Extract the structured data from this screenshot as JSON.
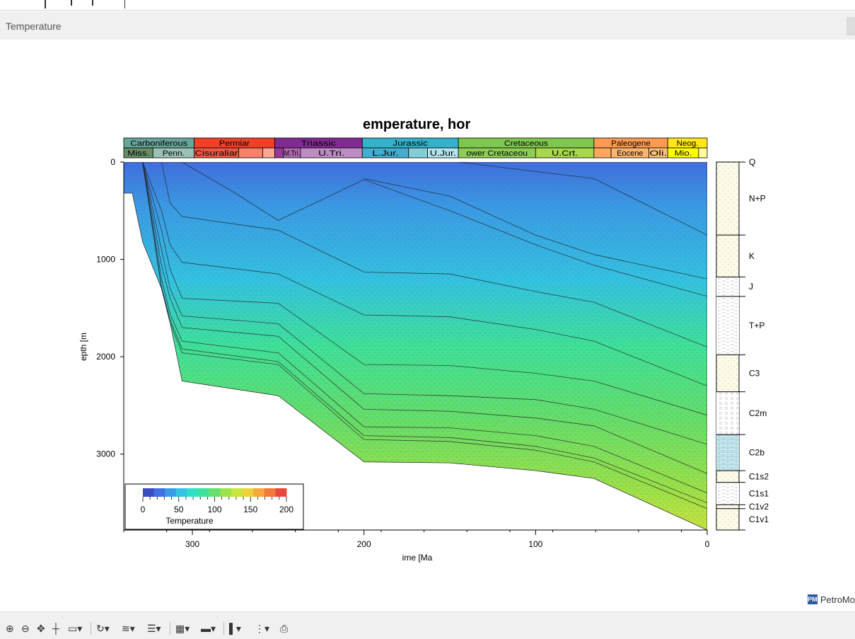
{
  "window": {
    "title": "Temperature",
    "logo_badge": "PM",
    "logo_text": "PetroMo"
  },
  "chart_data": {
    "type": "area",
    "title": "emperature, hor",
    "xlabel": "ime [Ma",
    "ylabel": "epth [m",
    "xlim": [
      340,
      0
    ],
    "ylim": [
      0,
      3780
    ],
    "x_ticks": [
      "300",
      "200",
      "100",
      "0"
    ],
    "y_ticks": [
      "0",
      "1000",
      "2000",
      "3000"
    ],
    "periods_top": [
      {
        "label": "Carboniferous",
        "from": 340,
        "to": 299,
        "color": "#67a599"
      },
      {
        "label": "Permiar",
        "from": 299,
        "to": 252,
        "color": "#f04028"
      },
      {
        "label": "Triassic",
        "from": 252,
        "to": 201,
        "color": "#812b92"
      },
      {
        "label": "Jurassic",
        "from": 201,
        "to": 145,
        "color": "#34b2c9"
      },
      {
        "label": "Cretaceous",
        "from": 145,
        "to": 66,
        "color": "#7fc64e"
      },
      {
        "label": "Paleogene",
        "from": 66,
        "to": 23,
        "color": "#fd9a52"
      },
      {
        "label": "Neog.",
        "from": 23,
        "to": 0,
        "color": "#ffe619"
      }
    ],
    "periods_bottom": [
      {
        "label": "Miss.",
        "from": 340,
        "to": 323,
        "color": "#678f66"
      },
      {
        "label": "Penn.",
        "from": 323,
        "to": 299,
        "color": "#99c2b5"
      },
      {
        "label": "Cisuraliar",
        "from": 299,
        "to": 273,
        "color": "#ef5845"
      },
      {
        "label": "",
        "from": 273,
        "to": 259,
        "color": "#fb8069"
      },
      {
        "label": "",
        "from": 259,
        "to": 252,
        "color": "#fba794"
      },
      {
        "label": "",
        "from": 252,
        "to": 247,
        "color": "#983999"
      },
      {
        "label": "M.Tri.",
        "from": 247,
        "to": 237,
        "color": "#b168b1"
      },
      {
        "label": "U.Tri.",
        "from": 237,
        "to": 201,
        "color": "#bd8cc3"
      },
      {
        "label": "L.Jur.",
        "from": 201,
        "to": 174,
        "color": "#42aed0"
      },
      {
        "label": "",
        "from": 174,
        "to": 163,
        "color": "#80cfd8"
      },
      {
        "label": "U.Jur.",
        "from": 163,
        "to": 145,
        "color": "#b3e3ee"
      },
      {
        "label": "ower Cretaceou",
        "from": 145,
        "to": 100,
        "color": "#8ccd57"
      },
      {
        "label": "U.Crt.",
        "from": 100,
        "to": 66,
        "color": "#a6d84a"
      },
      {
        "label": "",
        "from": 66,
        "to": 56,
        "color": "#fda75f"
      },
      {
        "label": "Eocene",
        "from": 56,
        "to": 34,
        "color": "#fdb46c"
      },
      {
        "label": "Oli.",
        "from": 34,
        "to": 23,
        "color": "#fdc07a"
      },
      {
        "label": "Mio.",
        "from": 23,
        "to": 5,
        "color": "#ffff00"
      },
      {
        "label": "",
        "from": 5,
        "to": 0,
        "color": "#ffff99"
      }
    ],
    "legend": {
      "title": "Temperature",
      "ticks": [
        "0",
        "50",
        "100",
        "150",
        "200"
      ],
      "range": [
        0,
        200
      ],
      "colors": [
        "#3b4cc0",
        "#3f6fe0",
        "#3a9be8",
        "#33c4e4",
        "#2fe0c8",
        "#3ee39a",
        "#66e06a",
        "#9ae34a",
        "#c8e63e",
        "#eed23a",
        "#f7a83a",
        "#f47a3c",
        "#e8473c"
      ]
    },
    "layer_boundaries": [
      {
        "name": "base",
        "x": [
          335,
          329,
          318,
          313,
          306,
          250,
          200,
          150,
          100,
          66,
          0
        ],
        "y": [
          320,
          820,
          1300,
          1650,
          2250,
          2400,
          3080,
          3090,
          3170,
          3250,
          3780
        ]
      },
      {
        "name": "C1v1",
        "x": [
          329,
          318,
          313,
          306,
          250,
          200,
          150,
          100,
          66,
          0
        ],
        "y": [
          0,
          1300,
          1650,
          1960,
          2080,
          2850,
          2870,
          2960,
          3080,
          3560
        ]
      },
      {
        "name": "C1v2",
        "x": [
          329,
          318,
          313,
          306,
          250,
          200,
          150,
          100,
          66,
          0
        ],
        "y": [
          0,
          1280,
          1620,
          1920,
          2050,
          2810,
          2830,
          2920,
          3040,
          3500
        ]
      },
      {
        "name": "C1s1",
        "x": [
          329,
          318,
          313,
          306,
          250,
          200,
          150,
          100,
          66,
          0
        ],
        "y": [
          0,
          1200,
          1560,
          1840,
          1960,
          2720,
          2730,
          2810,
          2920,
          3400
        ]
      },
      {
        "name": "C1s2",
        "x": [
          329,
          318,
          313,
          306,
          250,
          200,
          150,
          100,
          66,
          0
        ],
        "y": [
          0,
          1060,
          1400,
          1700,
          1790,
          2540,
          2560,
          2630,
          2710,
          3200
        ]
      },
      {
        "name": "C2b",
        "x": [
          329,
          318,
          313,
          306,
          250,
          200,
          150,
          100,
          66,
          0
        ],
        "y": [
          0,
          900,
          1300,
          1580,
          1660,
          2380,
          2400,
          2440,
          2540,
          2900
        ]
      },
      {
        "name": "C2m",
        "x": [
          329,
          318,
          313,
          306,
          250,
          200,
          150,
          100,
          66,
          0
        ],
        "y": [
          0,
          700,
          1100,
          1400,
          1450,
          2080,
          2090,
          2170,
          2250,
          2600
        ]
      },
      {
        "name": "C3",
        "x": [
          329,
          318,
          313,
          306,
          250,
          200,
          150,
          100,
          66,
          0
        ],
        "y": [
          0,
          500,
          850,
          1030,
          1150,
          1570,
          1590,
          1720,
          1840,
          2300
        ]
      },
      {
        "name": "T+P",
        "x": [
          318,
          313,
          306,
          250,
          200,
          150,
          100,
          66,
          0
        ],
        "y": [
          0,
          420,
          560,
          700,
          1130,
          1150,
          1330,
          1440,
          1900
        ]
      },
      {
        "name": "J",
        "x": [
          306,
          275,
          250,
          200,
          150,
          100,
          66,
          0
        ],
        "y": [
          0,
          320,
          600,
          180,
          500,
          850,
          1060,
          1380
        ]
      },
      {
        "name": "K",
        "x": [
          200,
          150,
          100,
          66,
          0
        ],
        "y": [
          170,
          350,
          750,
          950,
          1200
        ]
      },
      {
        "name": "N+P",
        "x": [
          145,
          66,
          0
        ],
        "y": [
          0,
          170,
          750
        ]
      }
    ],
    "stratigraphy_column": {
      "units": [
        {
          "label": "Q",
          "top": 0,
          "base": 0,
          "pattern": "dots"
        },
        {
          "label": "N+P",
          "top": 0,
          "base": 750,
          "pattern": "dots"
        },
        {
          "label": "K",
          "top": 750,
          "base": 1180,
          "pattern": "dots"
        },
        {
          "label": "J",
          "top": 1180,
          "base": 1380,
          "pattern": "dash"
        },
        {
          "label": "T+P",
          "top": 1380,
          "base": 1980,
          "pattern": "dash"
        },
        {
          "label": "C3",
          "top": 1980,
          "base": 2360,
          "pattern": "dots"
        },
        {
          "label": "C2m",
          "top": 2360,
          "base": 2800,
          "pattern": "circles"
        },
        {
          "label": "C2b",
          "top": 2800,
          "base": 3170,
          "pattern": "bricks-blue"
        },
        {
          "label": "C1s2",
          "top": 3170,
          "base": 3290,
          "pattern": "dots"
        },
        {
          "label": "C1s1",
          "top": 3290,
          "base": 3520,
          "pattern": "dash"
        },
        {
          "label": "C1v2",
          "top": 3520,
          "base": 3560,
          "pattern": "dots"
        },
        {
          "label": "C1v1",
          "top": 3560,
          "base": 3780,
          "pattern": "dots"
        }
      ]
    }
  },
  "toolbar": {
    "items": [
      {
        "name": "zoom-in-button",
        "glyph": "⊕"
      },
      {
        "name": "zoom-out-button",
        "glyph": "⊖"
      },
      {
        "name": "pan-button",
        "glyph": "✥"
      },
      {
        "name": "crosshair-button",
        "glyph": "┼"
      },
      {
        "name": "select-rect-button",
        "glyph": "▭▾"
      },
      {
        "name": "rotate-button",
        "glyph": "↻▾"
      },
      {
        "name": "layer-style-button",
        "glyph": "≋▾"
      },
      {
        "name": "lines-button",
        "glyph": "☰▾"
      },
      {
        "name": "grid-button",
        "glyph": "▦▾"
      },
      {
        "name": "color-map-button",
        "glyph": "▬▾"
      },
      {
        "name": "column-button",
        "glyph": "▌▾"
      },
      {
        "name": "legend-button",
        "glyph": "⋮▾"
      },
      {
        "name": "export-button",
        "glyph": "⎙"
      }
    ]
  }
}
